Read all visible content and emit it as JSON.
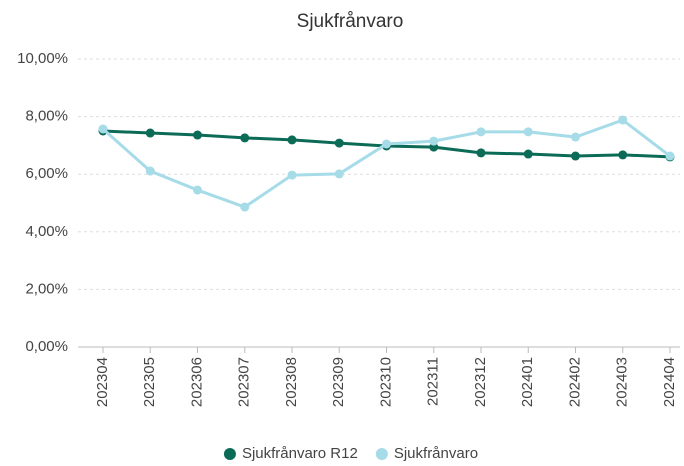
{
  "chart_data": {
    "type": "line",
    "title": "Sjukfrånvaro",
    "categories": [
      "202304",
      "202305",
      "202306",
      "202307",
      "202308",
      "202309",
      "202310",
      "202311",
      "202312",
      "202401",
      "202402",
      "202403",
      "202404"
    ],
    "series": [
      {
        "name": "Sjukfrånvaro R12",
        "color": "#0b6b57",
        "values": [
          7.5,
          7.43,
          7.36,
          7.26,
          7.19,
          7.08,
          6.98,
          6.94,
          6.74,
          6.7,
          6.63,
          6.67,
          6.6
        ]
      },
      {
        "name": "Sjukfrånvaro",
        "color": "#a6dbe8",
        "values": [
          7.57,
          6.11,
          5.45,
          4.86,
          5.97,
          6.01,
          7.05,
          7.15,
          7.47,
          7.47,
          7.29,
          7.88,
          6.63
        ]
      }
    ],
    "ylim": [
      0,
      10
    ],
    "yticks": [
      {
        "value": 0,
        "label": "0,00%"
      },
      {
        "value": 2,
        "label": "2,00%"
      },
      {
        "value": 4,
        "label": "4,00%"
      },
      {
        "value": 6,
        "label": "6,00%"
      },
      {
        "value": 8,
        "label": "8,00%"
      },
      {
        "value": 10,
        "label": "10,00%"
      }
    ],
    "grid": true,
    "legend": "bottom"
  }
}
